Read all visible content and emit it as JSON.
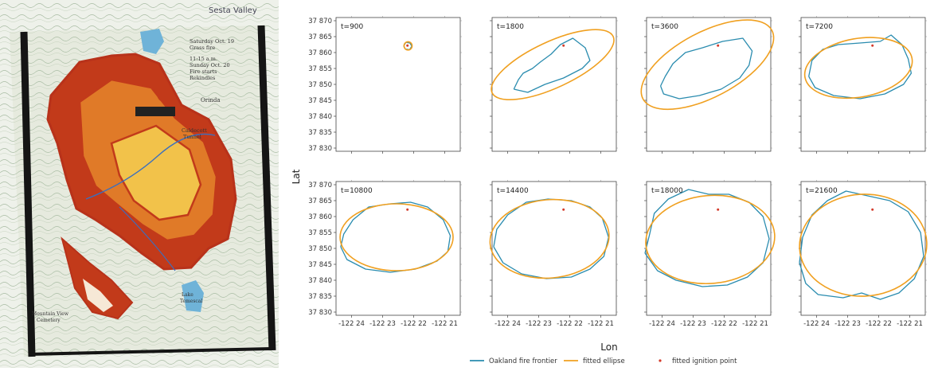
{
  "colors": {
    "frontier": "#2a8caf",
    "ellipse": "#f0a020",
    "ignition": "#d43a2a",
    "fire_dark": "#c23a1a",
    "fire_mid": "#e07a28",
    "fire_light": "#f2c24a",
    "map_bg": "#dfe6d6",
    "water": "#6fb3d8",
    "frame": "#151515"
  },
  "map": {
    "place_label": "Sesta Valley",
    "annotations": [
      "Saturday Oct. 19",
      "Grass fire",
      "11:15 a.m.",
      "Sunday Oct. 20",
      "Fire starts",
      "Rekindles",
      "Orinda",
      "Caldecott",
      "Tunnel",
      "Mountain View",
      "Cemetery",
      "Lake",
      "Temescal"
    ]
  },
  "chart_data": {
    "type": "line",
    "xlabel": "Lon",
    "ylabel": "Lat",
    "xlim": [
      -122.245,
      -122.205
    ],
    "ylim": [
      37.829,
      37.871
    ],
    "xticks": [
      -122.24,
      -122.23,
      -122.22,
      -122.21
    ],
    "xtick_labels": [
      "-122 24",
      "-122 23",
      "-122 22",
      "-122 21"
    ],
    "yticks": [
      37.87,
      37.865,
      37.86,
      37.855,
      37.85,
      37.845,
      37.84,
      37.835,
      37.83
    ],
    "ytick_labels": [
      "37 870",
      "37 865",
      "37 860",
      "37 855",
      "37 850",
      "37 845",
      "37 840",
      "37 835",
      "37 830"
    ],
    "legend": {
      "placement": "bottom-center",
      "entries": [
        {
          "label": "Oakland fire frontier",
          "marker": "line",
          "color": "#2a8caf"
        },
        {
          "label": "fitted ellipse",
          "marker": "line",
          "color": "#f0a020"
        },
        {
          "label": "fitted ignition point",
          "marker": "dot",
          "color": "#d43a2a"
        }
      ]
    },
    "panels": [
      {
        "label": "t=900",
        "ignition": [
          -122.222,
          37.8622
        ],
        "ellipse": {
          "cx": -122.2218,
          "cy": 37.8621,
          "rx": 0.0013,
          "ry": 0.0013,
          "angle": 0
        },
        "frontier": [
          [
            -122.2232,
            37.8621
          ],
          [
            -122.2225,
            37.8632
          ],
          [
            -122.2212,
            37.863
          ],
          [
            -122.2206,
            37.862
          ],
          [
            -122.2213,
            37.8609
          ],
          [
            -122.2227,
            37.8611
          ],
          [
            -122.2232,
            37.8621
          ]
        ]
      },
      {
        "label": "t=1800",
        "ignition": [
          -122.222,
          37.8622
        ],
        "ellipse": {
          "cx": -122.2255,
          "cy": 37.8562,
          "rx": 0.0215,
          "ry": 0.0072,
          "angle": 25
        },
        "frontier": [
          [
            -122.238,
            37.8485
          ],
          [
            -122.2365,
            37.8515
          ],
          [
            -122.235,
            37.8535
          ],
          [
            -122.232,
            37.855
          ],
          [
            -122.2295,
            37.857
          ],
          [
            -122.226,
            37.8595
          ],
          [
            -122.223,
            37.8625
          ],
          [
            -122.219,
            37.8645
          ],
          [
            -122.215,
            37.8615
          ],
          [
            -122.2135,
            37.8575
          ],
          [
            -122.216,
            37.855
          ],
          [
            -122.222,
            37.852
          ],
          [
            -122.228,
            37.85
          ],
          [
            -122.2335,
            37.8475
          ],
          [
            -122.238,
            37.8485
          ]
        ]
      },
      {
        "label": "t=3600",
        "ignition": [
          -122.222,
          37.8622
        ],
        "ellipse": {
          "cx": -122.2254,
          "cy": 37.8562,
          "rx": 0.0235,
          "ry": 0.0102,
          "angle": 28
        },
        "frontier": [
          [
            -122.2405,
            37.8495
          ],
          [
            -122.239,
            37.8525
          ],
          [
            -122.2365,
            37.8565
          ],
          [
            -122.2325,
            37.86
          ],
          [
            -122.227,
            37.8615
          ],
          [
            -122.2205,
            37.8635
          ],
          [
            -122.214,
            37.8645
          ],
          [
            -122.211,
            37.8605
          ],
          [
            -122.212,
            37.856
          ],
          [
            -122.215,
            37.852
          ],
          [
            -122.221,
            37.8485
          ],
          [
            -122.228,
            37.8465
          ],
          [
            -122.2345,
            37.8455
          ],
          [
            -122.2395,
            37.847
          ],
          [
            -122.2405,
            37.8495
          ]
        ]
      },
      {
        "label": "t=7200",
        "ignition": [
          -122.222,
          37.8622
        ],
        "ellipse": {
          "cx": -122.2265,
          "cy": 37.8552,
          "rx": 0.0175,
          "ry": 0.0092,
          "angle": 10
        },
        "frontier": [
          [
            -122.2425,
            37.8525
          ],
          [
            -122.2415,
            37.8575
          ],
          [
            -122.238,
            37.861
          ],
          [
            -122.233,
            37.8625
          ],
          [
            -122.226,
            37.863
          ],
          [
            -122.2195,
            37.8635
          ],
          [
            -122.216,
            37.8655
          ],
          [
            -122.2125,
            37.8625
          ],
          [
            -122.2105,
            37.858
          ],
          [
            -122.2095,
            37.8535
          ],
          [
            -122.212,
            37.85
          ],
          [
            -122.218,
            37.847
          ],
          [
            -122.226,
            37.8455
          ],
          [
            -122.2345,
            37.8465
          ],
          [
            -122.2405,
            37.849
          ],
          [
            -122.2425,
            37.8525
          ]
        ]
      },
      {
        "label": "t=10800",
        "ignition": [
          -122.222,
          37.8622
        ],
        "ellipse": {
          "cx": -122.2255,
          "cy": 37.8535,
          "rx": 0.0182,
          "ry": 0.0105,
          "angle": 0
        },
        "frontier": [
          [
            -122.2435,
            37.8505
          ],
          [
            -122.2425,
            37.8545
          ],
          [
            -122.2395,
            37.859
          ],
          [
            -122.2345,
            37.863
          ],
          [
            -122.2275,
            37.864
          ],
          [
            -122.221,
            37.8645
          ],
          [
            -122.2155,
            37.863
          ],
          [
            -122.2105,
            37.859
          ],
          [
            -122.2082,
            37.854
          ],
          [
            -122.209,
            37.849
          ],
          [
            -122.2125,
            37.846
          ],
          [
            -122.2195,
            37.8435
          ],
          [
            -122.2275,
            37.8425
          ],
          [
            -122.2355,
            37.8435
          ],
          [
            -122.2415,
            37.8465
          ],
          [
            -122.2435,
            37.8505
          ]
        ]
      },
      {
        "label": "t=14400",
        "ignition": [
          -122.222,
          37.8622
        ],
        "ellipse": {
          "cx": -122.2265,
          "cy": 37.853,
          "rx": 0.0192,
          "ry": 0.0123,
          "angle": 5
        },
        "frontier": [
          [
            -122.2445,
            37.8505
          ],
          [
            -122.2435,
            37.856
          ],
          [
            -122.24,
            37.8605
          ],
          [
            -122.234,
            37.8645
          ],
          [
            -122.227,
            37.8655
          ],
          [
            -122.2195,
            37.865
          ],
          [
            -122.2135,
            37.863
          ],
          [
            -122.2095,
            37.8595
          ],
          [
            -122.2075,
            37.8535
          ],
          [
            -122.209,
            37.8475
          ],
          [
            -122.2135,
            37.8435
          ],
          [
            -122.2195,
            37.841
          ],
          [
            -122.2275,
            37.8405
          ],
          [
            -122.2355,
            37.842
          ],
          [
            -122.2415,
            37.8455
          ],
          [
            -122.2445,
            37.8505
          ]
        ]
      },
      {
        "label": "t=18000",
        "ignition": [
          -122.222,
          37.8622
        ],
        "ellipse": {
          "cx": -122.2245,
          "cy": 37.8528,
          "rx": 0.0208,
          "ry": 0.0138,
          "angle": 5
        },
        "frontier": [
          [
            -122.2455,
            37.8485
          ],
          [
            -122.244,
            37.8545
          ],
          [
            -122.2425,
            37.861
          ],
          [
            -122.238,
            37.8655
          ],
          [
            -122.2315,
            37.8685
          ],
          [
            -122.225,
            37.867
          ],
          [
            -122.2185,
            37.867
          ],
          [
            -122.212,
            37.8645
          ],
          [
            -122.2075,
            37.86
          ],
          [
            -122.2055,
            37.853
          ],
          [
            -122.2075,
            37.8455
          ],
          [
            -122.2125,
            37.841
          ],
          [
            -122.219,
            37.8385
          ],
          [
            -122.227,
            37.838
          ],
          [
            -122.2355,
            37.84
          ],
          [
            -122.2415,
            37.843
          ],
          [
            -122.2455,
            37.8485
          ]
        ]
      },
      {
        "label": "t=21600",
        "ignition": [
          -122.222,
          37.8622
        ],
        "ellipse": {
          "cx": -122.225,
          "cy": 37.851,
          "rx": 0.0205,
          "ry": 0.016,
          "angle": 3
        },
        "frontier": [
          [
            -122.2455,
            37.8455
          ],
          [
            -122.2445,
            37.8535
          ],
          [
            -122.2415,
            37.8605
          ],
          [
            -122.2365,
            37.865
          ],
          [
            -122.2305,
            37.868
          ],
          [
            -122.2235,
            37.8665
          ],
          [
            -122.2165,
            37.865
          ],
          [
            -122.2105,
            37.8615
          ],
          [
            -122.2065,
            37.855
          ],
          [
            -122.2055,
            37.8475
          ],
          [
            -122.2085,
            37.8405
          ],
          [
            -122.2135,
            37.836
          ],
          [
            -122.2195,
            37.834
          ],
          [
            -122.2255,
            37.836
          ],
          [
            -122.2315,
            37.8345
          ],
          [
            -122.2395,
            37.8355
          ],
          [
            -122.2435,
            37.839
          ],
          [
            -122.2455,
            37.8455
          ]
        ]
      }
    ]
  }
}
